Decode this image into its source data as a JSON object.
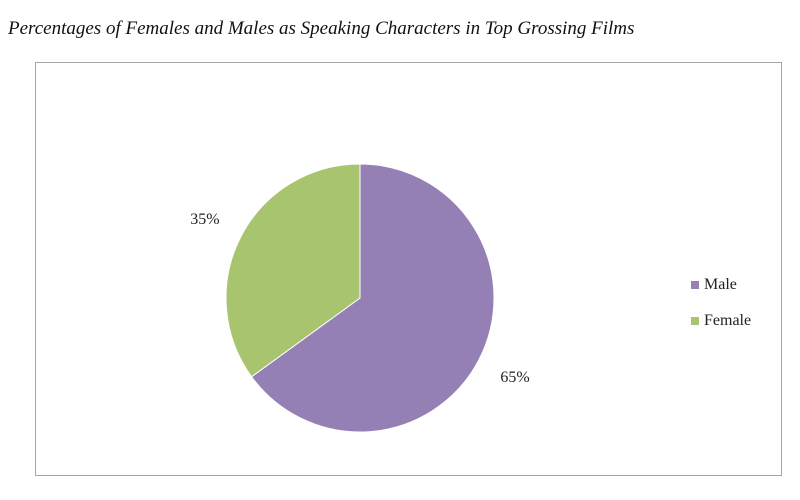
{
  "caption": "Percentages of Females and Males as Speaking Characters in Top Grossing Films",
  "chart_data": {
    "type": "pie",
    "title": "",
    "start_angle_deg": 0,
    "direction": "clockwise",
    "legend_position": "right",
    "slices": [
      {
        "name": "Male",
        "value": 65,
        "label": "65%",
        "color": "#9480b5"
      },
      {
        "name": "Female",
        "value": 35,
        "label": "35%",
        "color": "#a9c46e"
      }
    ]
  }
}
